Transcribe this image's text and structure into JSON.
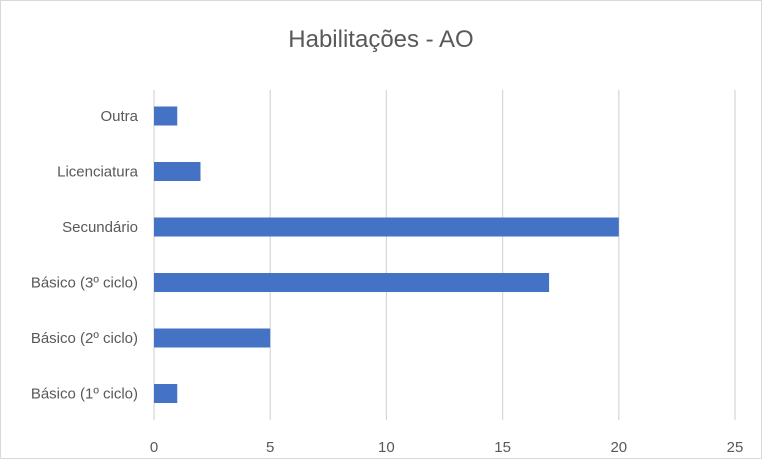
{
  "chart_data": {
    "type": "bar",
    "orientation": "horizontal",
    "title": "Habilitações - AO",
    "categories": [
      "Outra",
      "Licenciatura",
      "Secundário",
      "Básico (3º ciclo)",
      "Básico (2º ciclo)",
      "Básico (1º ciclo)"
    ],
    "values": [
      1,
      2,
      20,
      17,
      5,
      1
    ],
    "xlim": [
      0,
      25
    ],
    "xticks": [
      0,
      5,
      10,
      15,
      20,
      25
    ],
    "grid": "vertical",
    "legend": "none",
    "bar_color": "#4472c4",
    "grid_color": "#d9d9d9"
  }
}
